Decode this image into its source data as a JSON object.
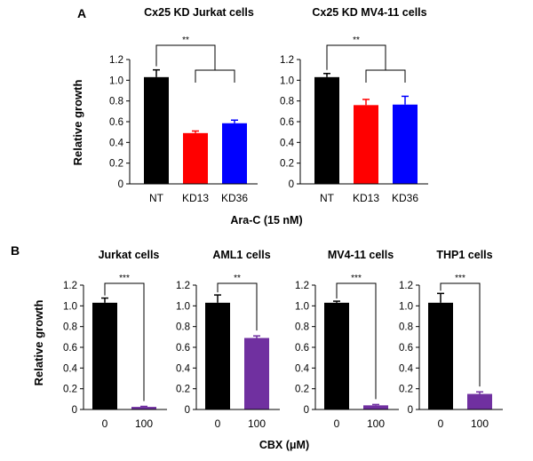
{
  "figure": {
    "panel_a": {
      "label": "A",
      "ylabel": "Relative growth",
      "xlabel": "Ara-C (15 nM)",
      "charts": [
        {
          "title": "Cx25 KD Jurkat cells",
          "significance": "**",
          "categories": [
            "NT",
            "KD13",
            "KD36"
          ],
          "values": [
            1.03,
            0.49,
            0.585
          ],
          "errors": [
            0.07,
            0.02,
            0.03
          ],
          "colors": [
            "#000000",
            "#ff0000",
            "#0000ff"
          ],
          "yticks": [
            "0",
            "0.2",
            "0.4",
            "0.6",
            "0.8",
            "1.0",
            "1.2"
          ]
        },
        {
          "title": "Cx25 KD MV4-11 cells",
          "significance": "**",
          "categories": [
            "NT",
            "KD13",
            "KD36"
          ],
          "values": [
            1.03,
            0.76,
            0.765
          ],
          "errors": [
            0.035,
            0.055,
            0.08
          ],
          "colors": [
            "#000000",
            "#ff0000",
            "#0000ff"
          ],
          "yticks": [
            "0",
            "0.2",
            "0.4",
            "0.6",
            "0.8",
            "1.0",
            "1.2"
          ]
        }
      ]
    },
    "panel_b": {
      "label": "B",
      "ylabel": "Relative growth",
      "xlabel": "CBX (μM)",
      "charts": [
        {
          "title": "Jurkat cells",
          "significance": "***",
          "categories": [
            "0",
            "100"
          ],
          "values": [
            1.03,
            0.025
          ],
          "errors": [
            0.045,
            0.005
          ],
          "colors": [
            "#000000",
            "#7030a0"
          ],
          "yticks": [
            "0",
            "0.2",
            "0.4",
            "0.6",
            "0.8",
            "1.0",
            "1.2"
          ]
        },
        {
          "title": "AML1 cells",
          "significance": "**",
          "categories": [
            "0",
            "100"
          ],
          "values": [
            1.03,
            0.69
          ],
          "errors": [
            0.075,
            0.02
          ],
          "colors": [
            "#000000",
            "#7030a0"
          ],
          "yticks": [
            "0",
            "0.2",
            "0.4",
            "0.6",
            "0.8",
            "1.0",
            "1.2"
          ]
        },
        {
          "title": "MV4-11 cells",
          "significance": "***",
          "categories": [
            "0",
            "100"
          ],
          "values": [
            1.03,
            0.04
          ],
          "errors": [
            0.015,
            0.008
          ],
          "colors": [
            "#000000",
            "#7030a0"
          ],
          "yticks": [
            "0",
            "0.2",
            "0.4",
            "0.6",
            "0.8",
            "1.0",
            "1.2"
          ]
        },
        {
          "title": "THP1 cells",
          "significance": "***",
          "categories": [
            "0",
            "100"
          ],
          "values": [
            1.03,
            0.15
          ],
          "errors": [
            0.09,
            0.02
          ],
          "colors": [
            "#000000",
            "#7030a0"
          ],
          "yticks": [
            "0",
            "0.2",
            "0.4",
            "0.6",
            "0.8",
            "1.0",
            "1.2"
          ]
        }
      ]
    }
  },
  "chart_data": [
    {
      "type": "bar",
      "title": "Cx25 KD Jurkat cells",
      "categories": [
        "NT",
        "KD13",
        "KD36"
      ],
      "values": [
        1.03,
        0.49,
        0.585
      ],
      "xlabel": "Ara-C (15 nM)",
      "ylabel": "Relative growth",
      "ylim": [
        0,
        1.2
      ],
      "annotations": [
        "**"
      ]
    },
    {
      "type": "bar",
      "title": "Cx25 KD MV4-11 cells",
      "categories": [
        "NT",
        "KD13",
        "KD36"
      ],
      "values": [
        1.03,
        0.76,
        0.765
      ],
      "xlabel": "Ara-C (15 nM)",
      "ylabel": "Relative growth",
      "ylim": [
        0,
        1.2
      ],
      "annotations": [
        "**"
      ]
    },
    {
      "type": "bar",
      "title": "Jurkat cells",
      "categories": [
        "0",
        "100"
      ],
      "values": [
        1.03,
        0.025
      ],
      "xlabel": "CBX (μM)",
      "ylabel": "Relative growth",
      "ylim": [
        0,
        1.2
      ],
      "annotations": [
        "***"
      ]
    },
    {
      "type": "bar",
      "title": "AML1 cells",
      "categories": [
        "0",
        "100"
      ],
      "values": [
        1.03,
        0.69
      ],
      "xlabel": "CBX (μM)",
      "ylabel": "Relative growth",
      "ylim": [
        0,
        1.2
      ],
      "annotations": [
        "**"
      ]
    },
    {
      "type": "bar",
      "title": "MV4-11 cells",
      "categories": [
        "0",
        "100"
      ],
      "values": [
        1.03,
        0.04
      ],
      "xlabel": "CBX (μM)",
      "ylabel": "Relative growth",
      "ylim": [
        0,
        1.2
      ],
      "annotations": [
        "***"
      ]
    },
    {
      "type": "bar",
      "title": "THP1 cells",
      "categories": [
        "0",
        "100"
      ],
      "values": [
        1.03,
        0.15
      ],
      "xlabel": "CBX (μM)",
      "ylabel": "Relative growth",
      "ylim": [
        0,
        1.2
      ],
      "annotations": [
        "***"
      ]
    }
  ]
}
